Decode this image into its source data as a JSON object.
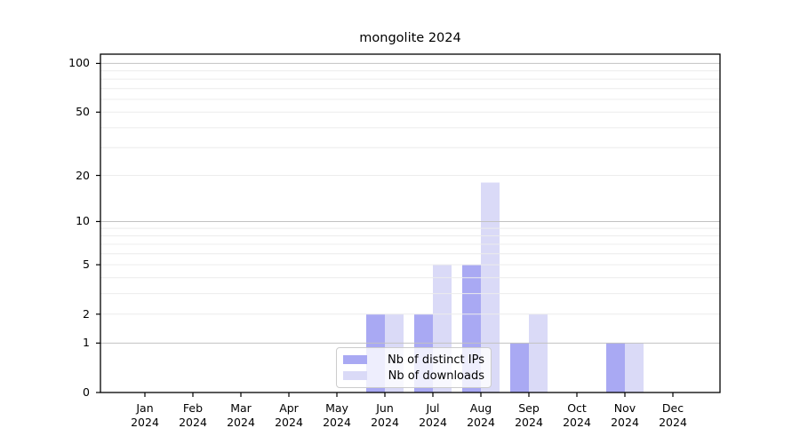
{
  "title": "mongolite 2024",
  "colors": {
    "distinct_ips_bar": "#a9a9f3",
    "downloads_bar": "#dadaf7",
    "major_grid": "#c2c2c2",
    "minor_grid": "#ececec",
    "axis": "#000000",
    "text": "#000000",
    "legend_border": "#cccccc"
  },
  "chart_data": {
    "type": "bar",
    "title": "mongolite 2024",
    "categories": [
      "Jan 2024",
      "Feb 2024",
      "Mar 2024",
      "Apr 2024",
      "May 2024",
      "Jun 2024",
      "Jul 2024",
      "Aug 2024",
      "Sep 2024",
      "Oct 2024",
      "Nov 2024",
      "Dec 2024"
    ],
    "series": [
      {
        "name": "Nb of distinct IPs",
        "color": "#a9a9f3",
        "values": [
          0,
          0,
          0,
          0,
          0,
          2,
          2,
          5,
          1,
          0,
          1,
          0
        ]
      },
      {
        "name": "Nb of downloads",
        "color": "#dadaf7",
        "values": [
          0,
          0,
          0,
          0,
          0,
          2,
          5,
          18,
          2,
          0,
          1,
          0
        ]
      }
    ],
    "xlabel": "",
    "ylabel": "",
    "y_axis": {
      "scale": "log1p",
      "ticks": [
        0,
        1,
        2,
        5,
        10,
        20,
        50,
        100
      ],
      "top_value": 114,
      "major_gridlines": [
        1,
        10,
        100
      ],
      "minor_gridlines": [
        2,
        3,
        4,
        5,
        6,
        7,
        8,
        9,
        20,
        30,
        40,
        50,
        60,
        70,
        80,
        90
      ]
    },
    "grid": true,
    "legend_position": "inside-bottom-center"
  }
}
